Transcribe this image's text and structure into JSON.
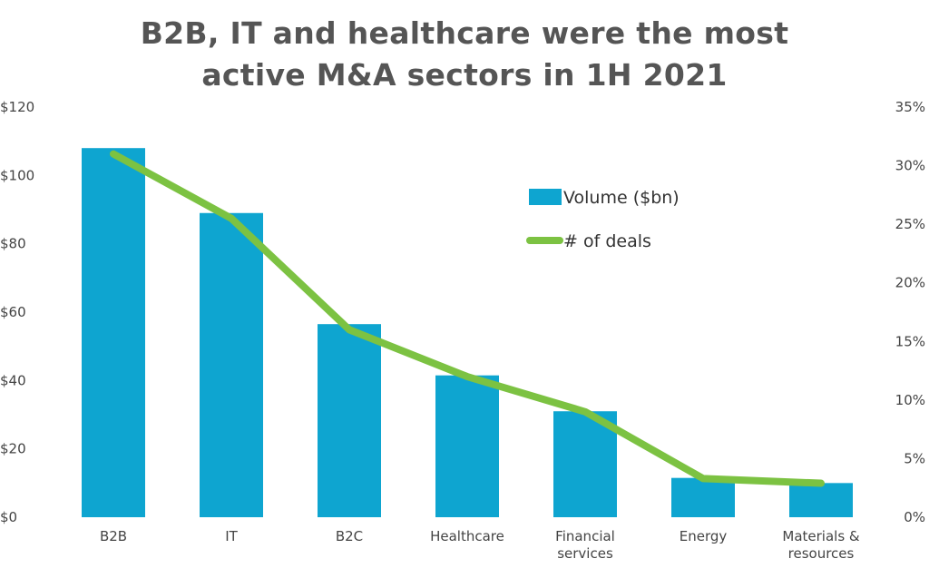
{
  "chart_data": {
    "type": "bar",
    "title_lines": [
      "B2B, IT and healthcare were the most",
      "active M&A sectors in 1H 2021"
    ],
    "categories": [
      [
        "B2B"
      ],
      [
        "IT"
      ],
      [
        "B2C"
      ],
      [
        "Healthcare"
      ],
      [
        "Financial",
        "services"
      ],
      [
        "Energy"
      ],
      [
        "Materials &",
        "resources"
      ]
    ],
    "series": [
      {
        "name": "Volume ($bn)",
        "type": "bar",
        "axis": "left",
        "color": "#0ea5d0",
        "values": [
          108,
          89,
          56.5,
          41.5,
          31,
          11.5,
          10
        ]
      },
      {
        "name": "# of deals",
        "type": "line",
        "axis": "right",
        "color": "#7cc242",
        "values": [
          31,
          25.5,
          16,
          12,
          9,
          3.3,
          2.9
        ]
      }
    ],
    "y_left": {
      "range": [
        0,
        120
      ],
      "ticks": [
        0,
        20,
        40,
        60,
        80,
        100,
        120
      ],
      "tick_labels": [
        "$0",
        "$20",
        "$40",
        "$60",
        "$80",
        "$100",
        "$120"
      ]
    },
    "y_right": {
      "range": [
        0,
        35
      ],
      "ticks": [
        0,
        5,
        10,
        15,
        20,
        25,
        30,
        35
      ],
      "tick_labels": [
        "0%",
        "5%",
        "10%",
        "15%",
        "20%",
        "25%",
        "30%",
        "35%"
      ]
    },
    "grid": false,
    "legend_position": "top-right"
  }
}
